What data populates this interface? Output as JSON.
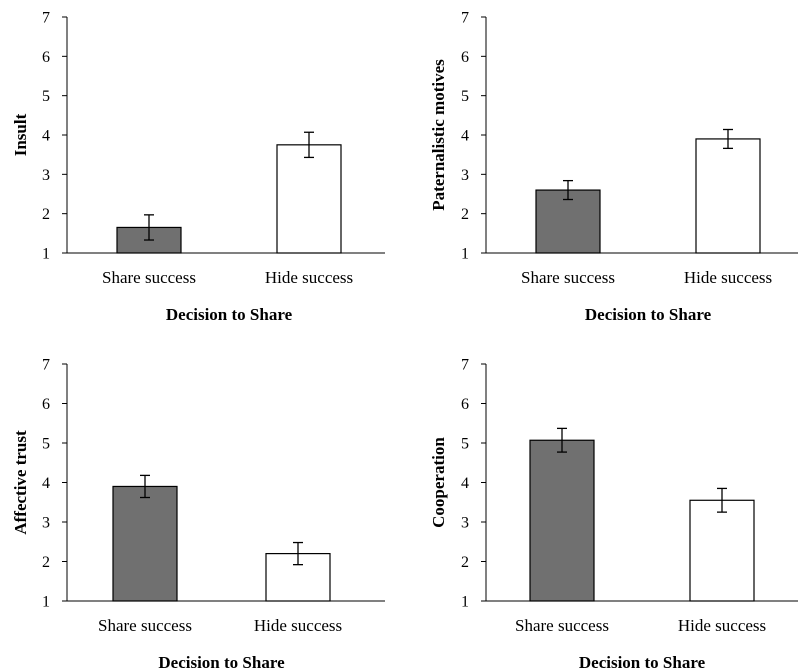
{
  "chart_data": [
    {
      "type": "bar",
      "categories": [
        "Share success",
        "Hide success"
      ],
      "values": [
        1.65,
        3.75
      ],
      "errors": [
        0.32,
        0.32
      ],
      "xlabel": "Decision to Share",
      "ylabel": "Insult",
      "ylim": [
        1,
        7
      ],
      "yticks": [
        "1",
        "2",
        "3",
        "4",
        "5",
        "6",
        "7"
      ],
      "colors": [
        "#707070",
        "#ffffff"
      ]
    },
    {
      "type": "bar",
      "categories": [
        "Share success",
        "Hide success"
      ],
      "values": [
        2.6,
        3.9
      ],
      "errors": [
        0.24,
        0.24
      ],
      "xlabel": "Decision to Share",
      "ylabel": "Paternalistic motives",
      "ylim": [
        1,
        7
      ],
      "yticks": [
        "1",
        "2",
        "3",
        "4",
        "5",
        "6",
        "7"
      ],
      "colors": [
        "#707070",
        "#ffffff"
      ]
    },
    {
      "type": "bar",
      "categories": [
        "Share success",
        "Hide success"
      ],
      "values": [
        3.9,
        2.2
      ],
      "errors": [
        0.28,
        0.28
      ],
      "xlabel": "Decision to Share",
      "ylabel": "Affective trust",
      "ylim": [
        1,
        7
      ],
      "yticks": [
        "1",
        "2",
        "3",
        "4",
        "5",
        "6",
        "7"
      ],
      "colors": [
        "#707070",
        "#ffffff"
      ]
    },
    {
      "type": "bar",
      "categories": [
        "Share success",
        "Hide success"
      ],
      "values": [
        5.07,
        3.55
      ],
      "errors": [
        0.3,
        0.3
      ],
      "xlabel": "Decision to Share",
      "ylabel": "Cooperation",
      "ylim": [
        1,
        7
      ],
      "yticks": [
        "1",
        "2",
        "3",
        "4",
        "5",
        "6",
        "7"
      ],
      "colors": [
        "#707070",
        "#ffffff"
      ]
    }
  ]
}
